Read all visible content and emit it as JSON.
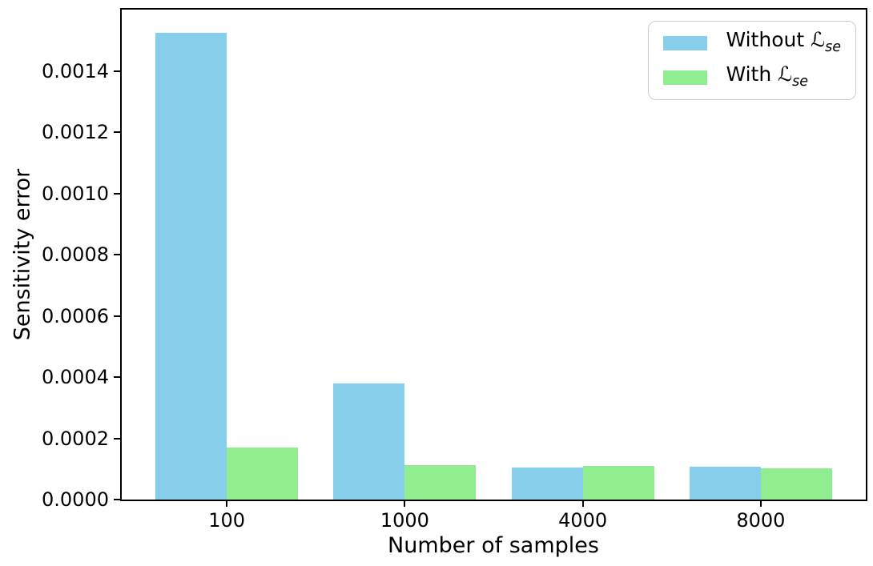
{
  "figure": {
    "background": "#ffffff",
    "text_color": "#000000"
  },
  "chart_data": {
    "type": "bar",
    "title": "",
    "xlabel": "Number of samples",
    "ylabel": "Sensitivity error",
    "categories": [
      "100",
      "1000",
      "4000",
      "8000"
    ],
    "series": [
      {
        "name": "Without ℒse",
        "color": "#87ceeb",
        "values": [
          0.001525,
          0.000379,
          0.000105,
          0.000106
        ]
      },
      {
        "name": "With ℒse",
        "color": "#90ee90",
        "values": [
          0.000171,
          0.000112,
          0.000109,
          0.000101
        ]
      }
    ],
    "ylim": [
      0,
      0.0016
    ],
    "yticks": [
      "0.0000",
      "0.0002",
      "0.0004",
      "0.0006",
      "0.0008",
      "0.0010",
      "0.0012",
      "0.0014"
    ],
    "grid": false,
    "legend": {
      "position": "upper-right",
      "entries": [
        {
          "prefix": "Without ",
          "symbol": "ℒ",
          "subscript": "se"
        },
        {
          "prefix": "With ",
          "symbol": "ℒ",
          "subscript": "se"
        }
      ]
    }
  }
}
